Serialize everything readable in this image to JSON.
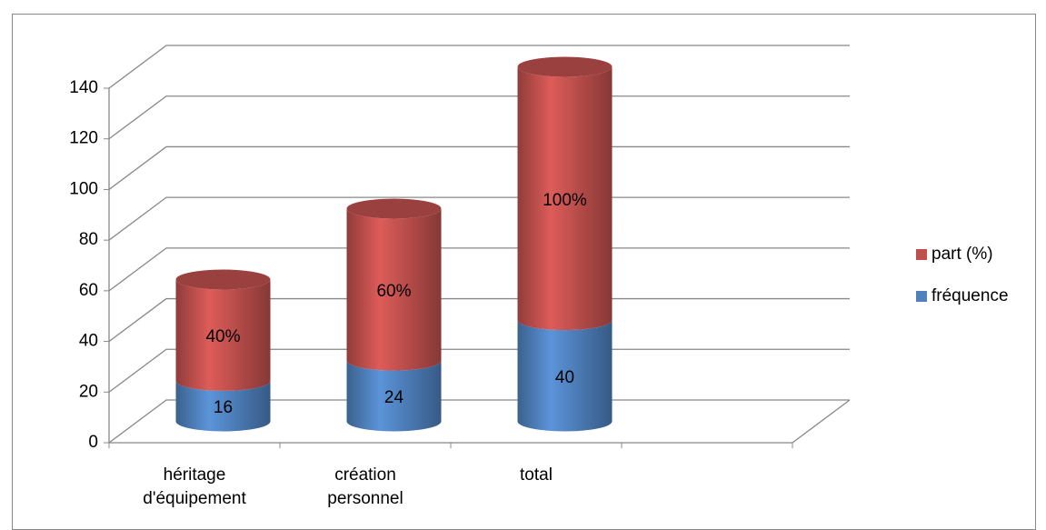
{
  "chart_data": {
    "type": "bar3d_stacked_cylinder",
    "categories": [
      "héritage d'équipement",
      "création personnel",
      "total",
      null
    ],
    "series": [
      {
        "name": "fréquence",
        "color": "#4f81bd",
        "values": [
          16,
          24,
          40,
          null
        ]
      },
      {
        "name": "part (%)",
        "color": "#c0504d",
        "values": [
          40,
          60,
          100,
          null
        ],
        "value_labels": [
          "40%",
          "60%",
          "100%",
          null
        ]
      }
    ],
    "ylim": [
      0,
      140
    ],
    "yticks": [
      0,
      20,
      40,
      60,
      80,
      100,
      120,
      140
    ],
    "grid": true,
    "legend": "right"
  }
}
